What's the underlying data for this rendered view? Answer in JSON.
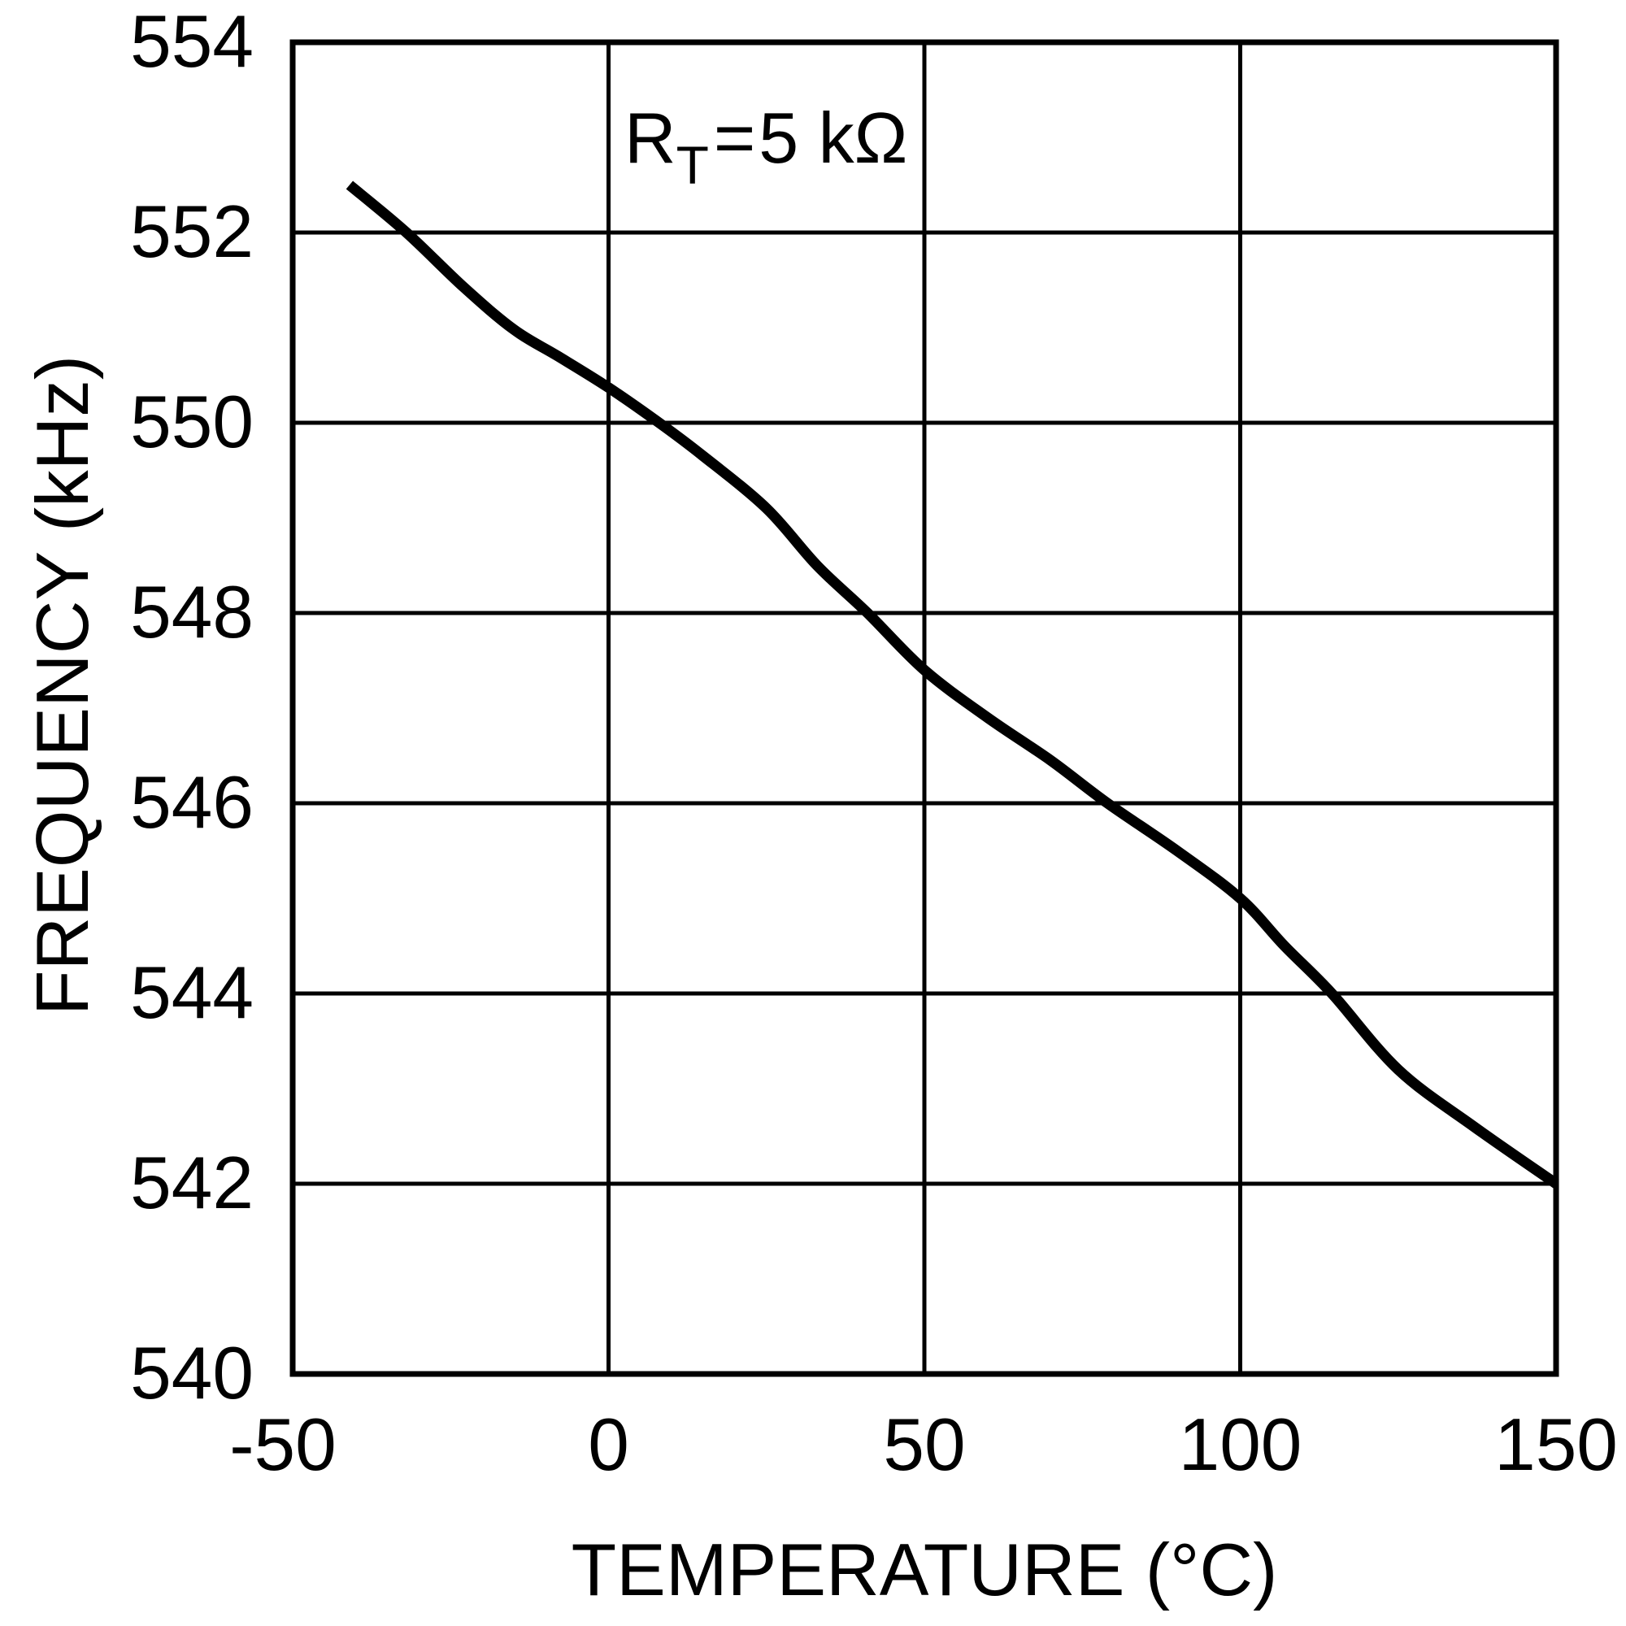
{
  "chart_data": {
    "type": "line",
    "title": "",
    "annotation": {
      "symbol": "R",
      "subscript": "T",
      "equals": "=",
      "value": "5 kΩ",
      "full": "RT = 5 kΩ"
    },
    "xlabel": "TEMPERATURE (°C)",
    "ylabel": "FREQUENCY (kHz)",
    "xlim": [
      -50,
      150
    ],
    "ylim": [
      540,
      554
    ],
    "x_ticks": [
      "-50",
      "0",
      "50",
      "100",
      "150"
    ],
    "y_ticks": [
      "554",
      "552",
      "550",
      "548",
      "546",
      "544",
      "542",
      "540"
    ],
    "grid": true,
    "legend": null,
    "series": [
      {
        "name": "RT = 5 kΩ",
        "color": "#000000",
        "x": [
          -41,
          -32,
          -23,
          -15,
          -8,
          0,
          8,
          15,
          25,
          33,
          41,
          50,
          60,
          70,
          79,
          90,
          100,
          107,
          114.5,
          125,
          137,
          150
        ],
        "values": [
          552.5,
          552.0,
          551.43,
          550.98,
          550.7,
          550.37,
          550.0,
          549.65,
          549.1,
          548.5,
          548.0,
          547.4,
          546.9,
          546.45,
          546.0,
          545.5,
          545.0,
          544.5,
          544.0,
          543.2,
          542.6,
          542.0
        ]
      }
    ]
  },
  "colors": {
    "line": "#000000",
    "grid": "#000000",
    "background": "#ffffff"
  }
}
